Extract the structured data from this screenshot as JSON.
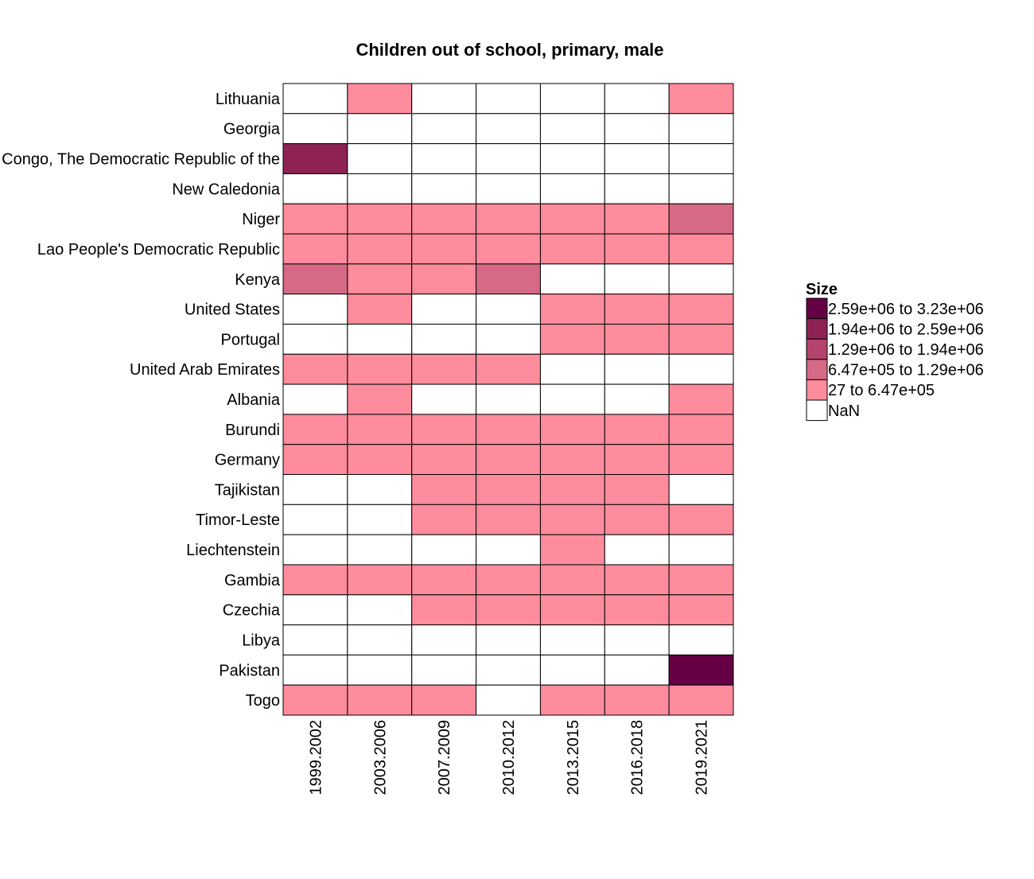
{
  "chart_data": {
    "type": "heatmap",
    "title": "Children out of school, primary, male",
    "xlabel": "",
    "ylabel": "",
    "x_categories": [
      "1999.2002",
      "2003.2006",
      "2007.2009",
      "2010.2012",
      "2013.2015",
      "2016.2018",
      "2019.2021"
    ],
    "y_categories": [
      "Lithuania",
      "Georgia",
      "Congo, The Democratic Republic of the",
      "New Caledonia",
      "Niger",
      "Lao People's Democratic Republic",
      "Kenya",
      "United States",
      "Portugal",
      "United Arab Emirates",
      "Albania",
      "Burundi",
      "Germany",
      "Tajikistan",
      "Timor-Leste",
      "Liechtenstein",
      "Gambia",
      "Czechia",
      "Libya",
      "Pakistan",
      "Togo"
    ],
    "bin_matrix": [
      [
        -1,
        0,
        -1,
        -1,
        -1,
        -1,
        0
      ],
      [
        -1,
        -1,
        -1,
        -1,
        -1,
        -1,
        -1
      ],
      [
        3,
        -1,
        -1,
        -1,
        -1,
        -1,
        -1
      ],
      [
        -1,
        -1,
        -1,
        -1,
        -1,
        -1,
        -1
      ],
      [
        0,
        0,
        0,
        0,
        0,
        0,
        1
      ],
      [
        0,
        0,
        0,
        0,
        0,
        0,
        0
      ],
      [
        1,
        0,
        0,
        1,
        -1,
        -1,
        -1
      ],
      [
        -1,
        0,
        -1,
        -1,
        0,
        0,
        0
      ],
      [
        -1,
        -1,
        -1,
        -1,
        0,
        0,
        0
      ],
      [
        0,
        0,
        0,
        0,
        -1,
        -1,
        -1
      ],
      [
        -1,
        0,
        -1,
        -1,
        -1,
        -1,
        0
      ],
      [
        0,
        0,
        0,
        0,
        0,
        0,
        0
      ],
      [
        0,
        0,
        0,
        0,
        0,
        0,
        0
      ],
      [
        -1,
        -1,
        0,
        0,
        0,
        0,
        -1
      ],
      [
        -1,
        -1,
        0,
        0,
        0,
        0,
        0
      ],
      [
        -1,
        -1,
        -1,
        -1,
        0,
        -1,
        -1
      ],
      [
        0,
        0,
        0,
        0,
        0,
        0,
        0
      ],
      [
        -1,
        -1,
        0,
        0,
        0,
        0,
        0
      ],
      [
        -1,
        -1,
        -1,
        -1,
        -1,
        -1,
        -1
      ],
      [
        -1,
        -1,
        -1,
        -1,
        -1,
        -1,
        4
      ],
      [
        0,
        0,
        0,
        -1,
        0,
        0,
        0
      ]
    ],
    "legend": {
      "title": "Size",
      "position": "right",
      "bins": [
        {
          "label": "27 to 6.47e+05",
          "color": "#FF8C9C"
        },
        {
          "label": "6.47e+05 to 1.29e+06",
          "color": "#D66986"
        },
        {
          "label": "1.29e+06 to 1.94e+06",
          "color": "#B2446D"
        },
        {
          "label": "1.94e+06 to 2.59e+06",
          "color": "#8E2255"
        },
        {
          "label": "2.59e+06 to 3.23e+06",
          "color": "#660044"
        }
      ],
      "nan": {
        "label": "NaN",
        "color": "#FFFFFF"
      }
    },
    "grid": false
  }
}
